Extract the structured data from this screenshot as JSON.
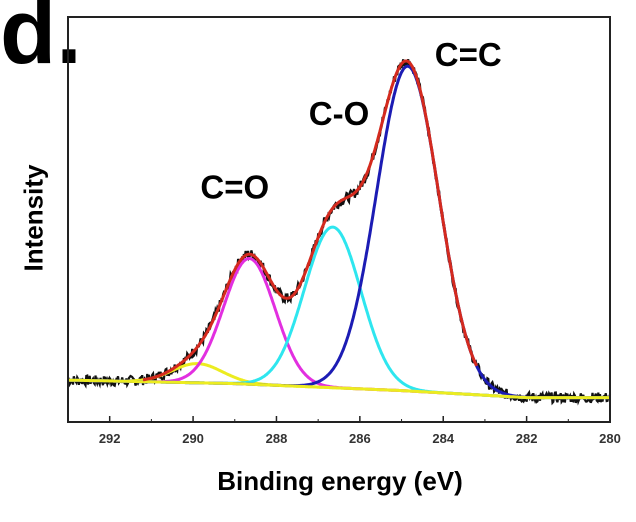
{
  "chart_data": {
    "type": "line",
    "panel_label": "d.",
    "xlabel": "Binding energy (eV)",
    "ylabel": "Intensity",
    "xlim": [
      293,
      280
    ],
    "x_reversed": true,
    "xticks": [
      292,
      290,
      288,
      286,
      284,
      282,
      280
    ],
    "ylim": [
      -0.12,
      1.04
    ],
    "yticks_shown": false,
    "grid": false,
    "annotations": [
      {
        "text": "C=O",
        "x": 289.0,
        "y": 0.52
      },
      {
        "text": "C-O",
        "x": 286.5,
        "y": 0.73
      },
      {
        "text": "C=C",
        "x": 283.4,
        "y": 0.9
      }
    ],
    "background": {
      "x": [
        293,
        289,
        285,
        282,
        280
      ],
      "y": [
        0.0,
        -0.01,
        -0.03,
        -0.05,
        -0.05
      ]
    },
    "components": [
      {
        "label": "C=C",
        "center": 284.85,
        "height": 0.93,
        "width": 0.75,
        "color": "#1c1cb4"
      },
      {
        "label": "C-O",
        "center": 286.65,
        "height": 0.46,
        "width": 0.68,
        "color": "#2ee6ef"
      },
      {
        "label": "C=O",
        "center": 288.65,
        "height": 0.36,
        "width": 0.62,
        "color": "#e22fe0"
      },
      {
        "label": "",
        "center": 289.9,
        "height": 0.055,
        "width": 0.6,
        "color": "#ecec20"
      }
    ],
    "envelope_color": "#d42a1e",
    "raw_color": "#111111"
  }
}
